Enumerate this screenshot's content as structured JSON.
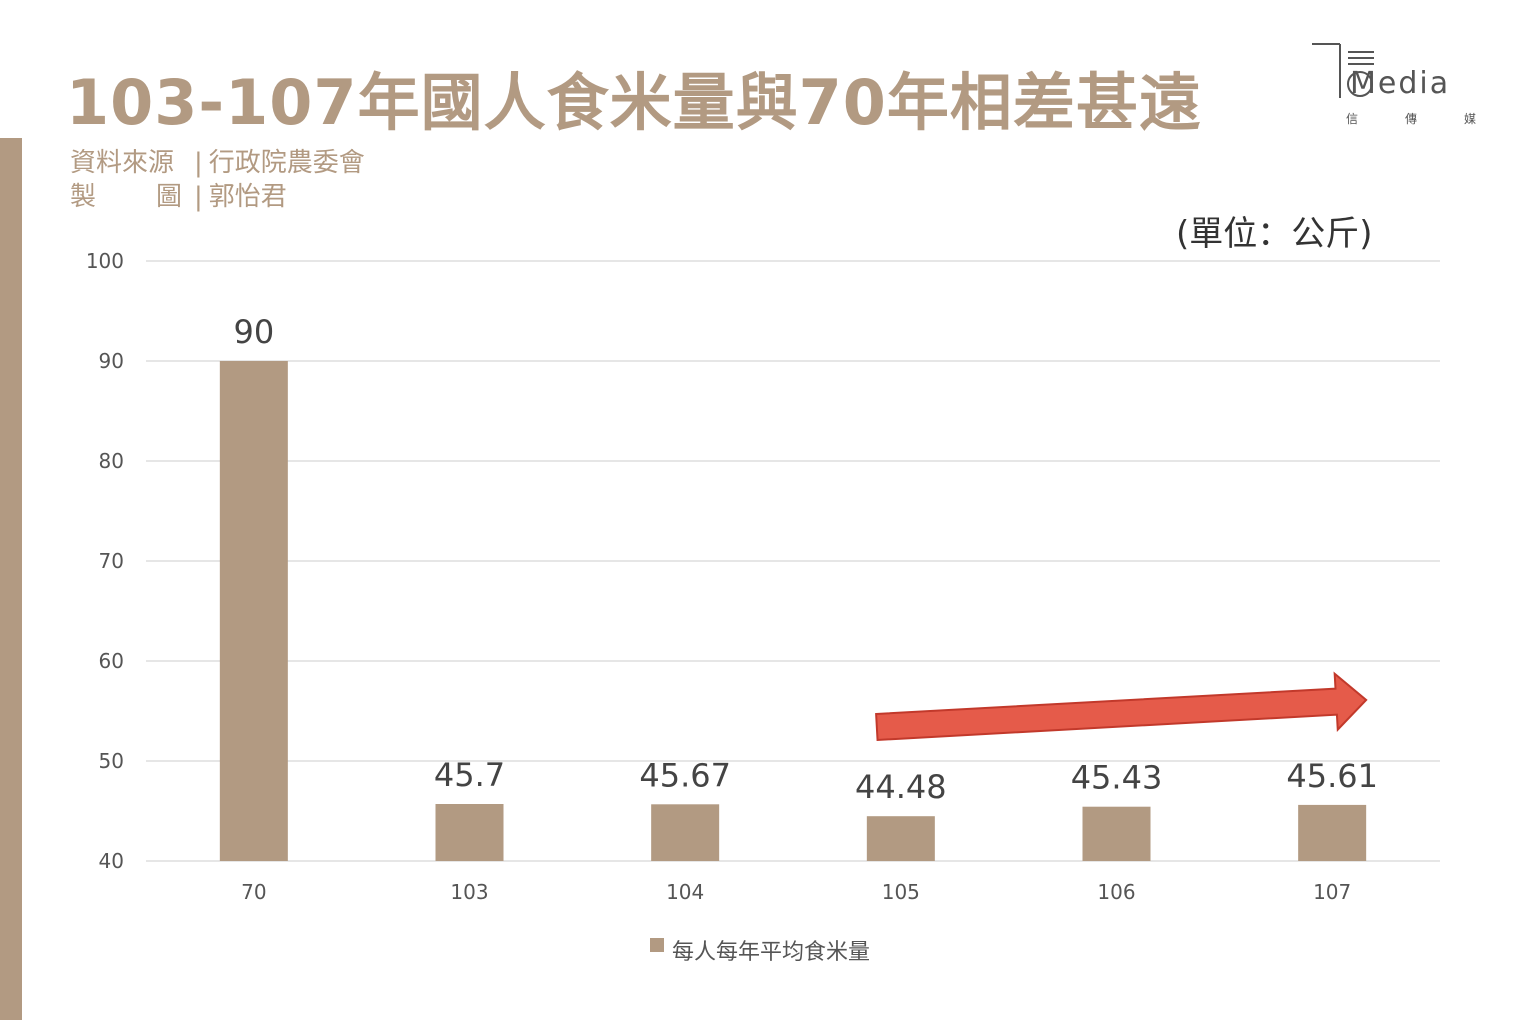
{
  "header": {
    "title": "103-107年國人食米量與70年相差甚遠",
    "source_label": "資料來源",
    "source_value": "行政院農委會",
    "author_label_1": "製",
    "author_label_2": "圖",
    "author_value": "郭怡君",
    "separator": "|"
  },
  "logo": {
    "main": "Media",
    "sub": [
      "信",
      "傳",
      "媒"
    ]
  },
  "unit": "(單位：公斤)",
  "colors": {
    "bar": "#b29a82",
    "arrow": "#e55b4a",
    "arrow_stroke": "#c2392b",
    "grid": "#dddddd"
  },
  "chart_data": {
    "type": "bar",
    "categories": [
      "70",
      "103",
      "104",
      "105",
      "106",
      "107"
    ],
    "series": [
      {
        "name": "每人每年平均食米量",
        "values": [
          90,
          45.7,
          45.67,
          44.48,
          45.43,
          45.61
        ]
      }
    ],
    "value_labels": [
      "90",
      "45.7",
      "45.67",
      "44.48",
      "45.43",
      "45.61"
    ],
    "ylim": [
      40,
      100
    ],
    "yticks": [
      40,
      50,
      60,
      70,
      80,
      90,
      100
    ],
    "grid": true,
    "legend_position": "bottom",
    "annotation": {
      "type": "arrow",
      "from_category": "105",
      "to_category": "107",
      "direction": "up-right"
    }
  }
}
